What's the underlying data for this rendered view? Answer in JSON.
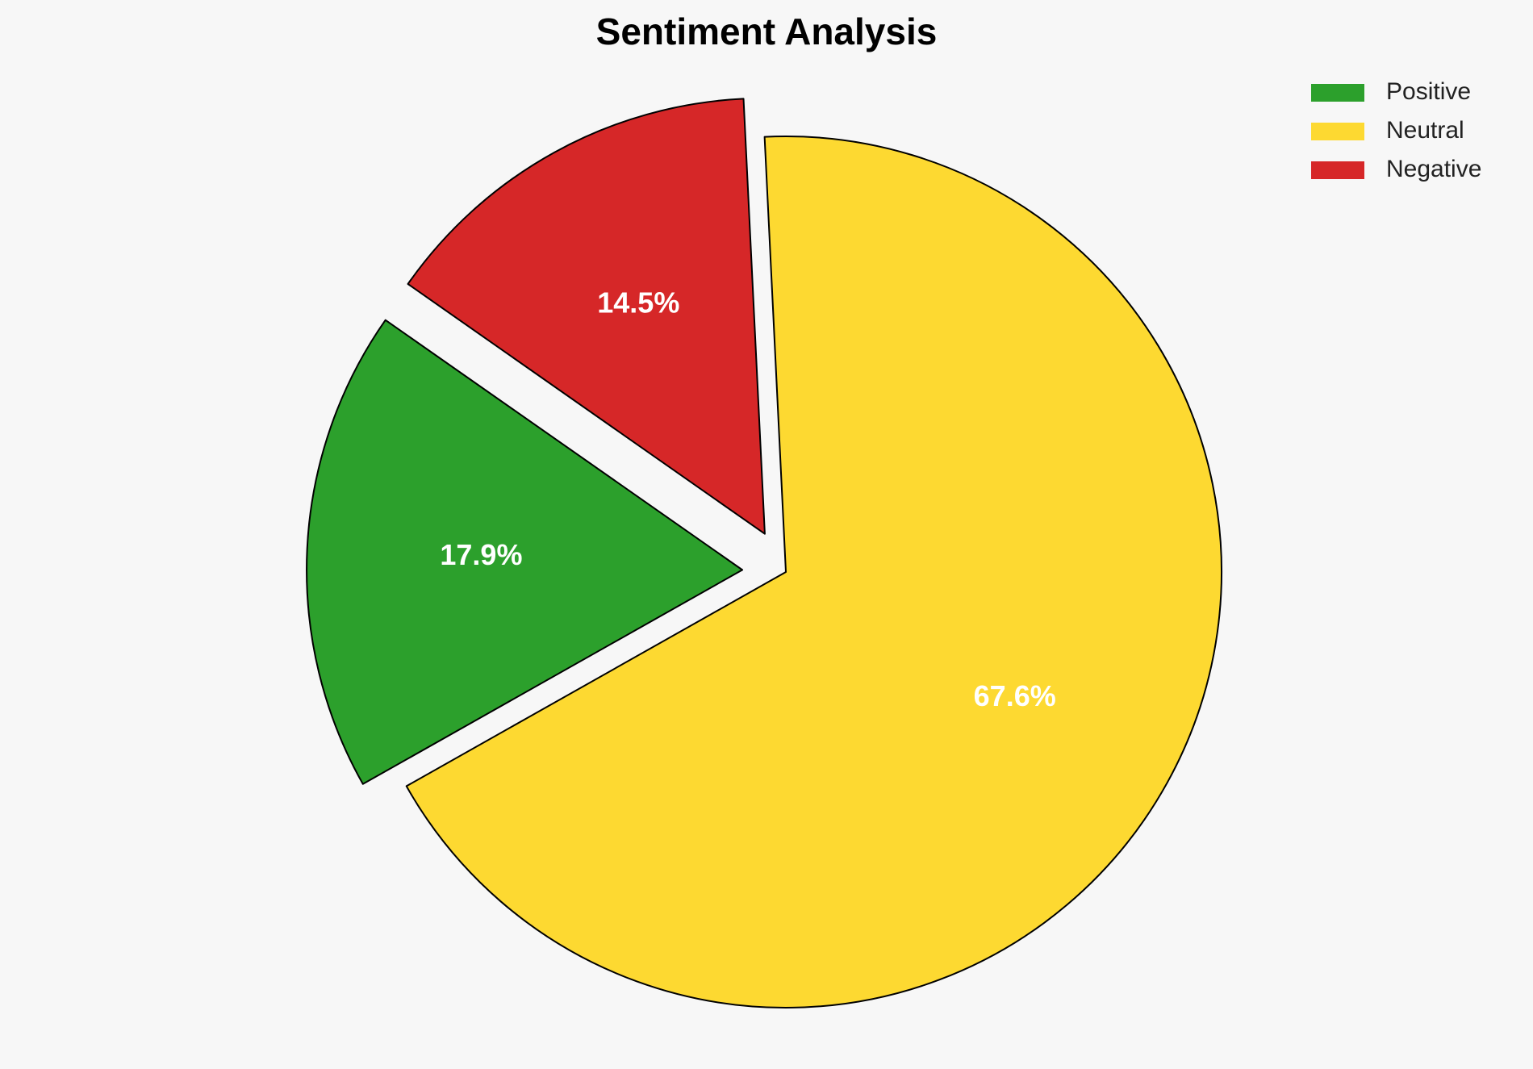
{
  "chart_data": {
    "type": "pie",
    "title": "Sentiment Analysis",
    "categories": [
      "Positive",
      "Neutral",
      "Negative"
    ],
    "values": [
      17.9,
      67.6,
      14.5
    ],
    "value_labels": [
      "17.9%",
      "67.6%",
      "14.5%"
    ],
    "colors": [
      "#2ca02c",
      "#fdd931",
      "#d62728"
    ],
    "legend": "upper right"
  }
}
